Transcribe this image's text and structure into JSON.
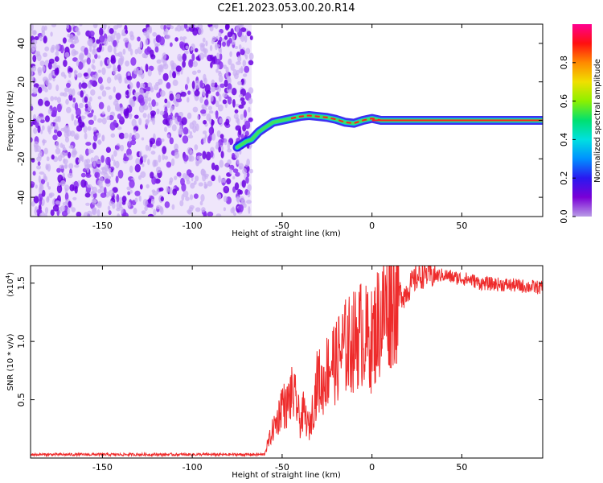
{
  "title": "C2E1.2023.053.00.20.R14",
  "colors": {
    "noise": "#7a1cf0",
    "ridge_core": "#ff1e1e",
    "snr_line": "#ee2b2b",
    "axis": "#000000"
  },
  "chart_data": [
    {
      "type": "heatmap",
      "xlabel": "Height of straight line (km)",
      "ylabel": "Frequency (Hz)",
      "xlim": [
        -190,
        95
      ],
      "ylim": [
        -50,
        50
      ],
      "xticks": [
        -150,
        -100,
        -50,
        0,
        50
      ],
      "yticks": [
        -40,
        -20,
        0,
        20,
        40
      ],
      "noise_region_x": [
        -190,
        -67
      ],
      "ridge": {
        "x": [
          -75,
          -70,
          -67,
          -63,
          -60,
          -55,
          -50,
          -45,
          -40,
          -35,
          -30,
          -25,
          -20,
          -15,
          -10,
          -5,
          0,
          5,
          10,
          15,
          95
        ],
        "frequency": [
          -14,
          -11,
          -10,
          -6,
          -4,
          -1,
          0,
          1,
          2,
          2.5,
          2,
          1.5,
          0.5,
          -1,
          -1.5,
          0,
          1,
          0,
          0,
          0,
          0
        ]
      },
      "colorbar": {
        "label": "Normalized spectral amplitude",
        "range": [
          0.0,
          1.0
        ],
        "ticks": [
          "0.0",
          "0.2",
          "0.4",
          "0.6",
          "0.8"
        ],
        "colormap": [
          "#b99ce6",
          "#7a00d6",
          "#2a18f0",
          "#0090ff",
          "#00e0e0",
          "#00e070",
          "#8cf000",
          "#f0e000",
          "#ff8a00",
          "#ff1010",
          "#ff0090"
        ]
      }
    },
    {
      "type": "line",
      "xlabel": "Height of straight line (km)",
      "ylabel": "SNR (10 * v/v)",
      "scale_label": "(x10",
      "scale_exponent": "4",
      "scale_close": ")",
      "xlim": [
        -190,
        95
      ],
      "ylim": [
        0,
        16500
      ],
      "xticks": [
        -150,
        -100,
        -50,
        0,
        50
      ],
      "yticks": [
        0.5,
        1.0,
        1.5
      ],
      "ytick_labels": [
        "0.5",
        "1.0",
        "1.5"
      ],
      "series": [
        {
          "color": "#ee2b2b",
          "x": [
            -190,
            -60,
            -58,
            -55,
            -52,
            -50,
            -48,
            -45,
            -42,
            -40,
            -38,
            -35,
            -32,
            -30,
            -28,
            -25,
            -22,
            -20,
            -18,
            -15,
            -12,
            -10,
            -8,
            -5,
            -3,
            0,
            3,
            5,
            8,
            10,
            12,
            15,
            18,
            20,
            25,
            30,
            35,
            40,
            45,
            50,
            55,
            60,
            70,
            80,
            95
          ],
          "y": [
            300,
            300,
            1200,
            2500,
            3500,
            5000,
            4200,
            5500,
            4800,
            3000,
            4000,
            2500,
            5000,
            7000,
            6000,
            7500,
            8500,
            8000,
            9000,
            9500,
            9800,
            10000,
            10500,
            10800,
            10200,
            10000,
            11500,
            12000,
            13000,
            13500,
            14000,
            14200,
            14000,
            14500,
            15500,
            15800,
            15600,
            15700,
            15500,
            15400,
            15300,
            15000,
            14900,
            14800,
            14600
          ]
        }
      ]
    }
  ]
}
